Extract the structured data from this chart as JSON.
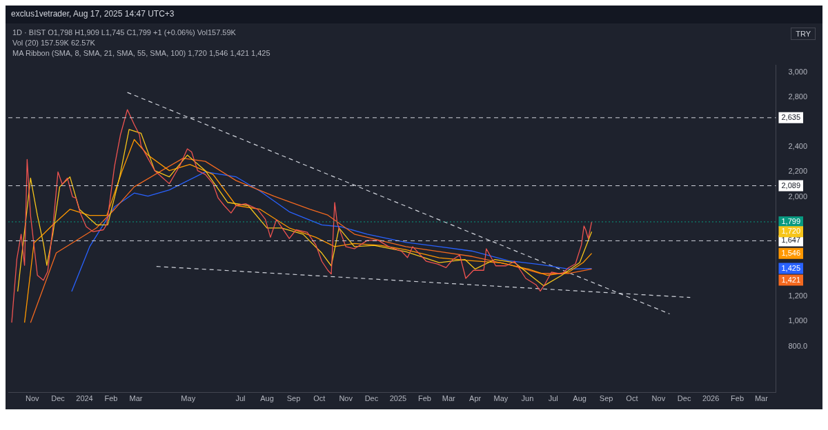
{
  "chart_data": {
    "type": "line",
    "title": "exclus1vetrader, Aug 17, 2025 14:47 UTC+3",
    "subtitle": "1D · BIST  O1,798  H1,909  L1,745  C1,799  +1 (+0.06%)  Vol157.59K",
    "annotations": [
      "Vol (20)  157.59K  62.57K",
      "MA Ribbon (SMA, 8, SMA, 21, SMA, 55, SMA, 100)  1,720  1,546  1,421  1,425",
      "TRY",
      "1,720",
      "1,546",
      "1,421",
      "1,425"
    ],
    "xlim": [
      "2023-10-04",
      "2026-03-18"
    ],
    "xticks": [
      {
        "value": "2023-11-01",
        "label": "Nov"
      },
      {
        "value": "2023-12-01",
        "label": "Dec"
      },
      {
        "value": "2024-01-01",
        "label": "2024"
      },
      {
        "value": "2024-02-01",
        "label": "Feb"
      },
      {
        "value": "2024-03-01",
        "label": "Mar"
      },
      {
        "value": "2024-05-01",
        "label": "May"
      },
      {
        "value": "2024-07-01",
        "label": "Jul"
      },
      {
        "value": "2024-08-01",
        "label": "Aug"
      },
      {
        "value": "2024-09-01",
        "label": "Sep"
      },
      {
        "value": "2024-10-01",
        "label": "Oct"
      },
      {
        "value": "2024-11-01",
        "label": "Nov"
      },
      {
        "value": "2024-12-01",
        "label": "Dec"
      },
      {
        "value": "2025-01-01",
        "label": "2025"
      },
      {
        "value": "2025-02-01",
        "label": "Feb"
      },
      {
        "value": "2025-03-01",
        "label": "Mar"
      },
      {
        "value": "2025-04-01",
        "label": "Apr"
      },
      {
        "value": "2025-05-01",
        "label": "May"
      },
      {
        "value": "2025-06-01",
        "label": "Jun"
      },
      {
        "value": "2025-07-01",
        "label": "Jul"
      },
      {
        "value": "2025-08-01",
        "label": "Aug"
      },
      {
        "value": "2025-09-01",
        "label": "Sep"
      },
      {
        "value": "2025-10-01",
        "label": "Oct"
      },
      {
        "value": "2025-11-01",
        "label": "Nov"
      },
      {
        "value": "2025-12-01",
        "label": "Dec"
      },
      {
        "value": "2026-01-01",
        "label": "2026"
      },
      {
        "value": "2026-02-01",
        "label": "Feb"
      },
      {
        "value": "2026-03-01",
        "label": "Mar"
      }
    ],
    "ylim": [
      430,
      3060
    ],
    "yticks": [
      {
        "value": 800,
        "label": "800.0"
      },
      {
        "value": 1000,
        "label": "1,000"
      },
      {
        "value": 1200,
        "label": "1,200"
      },
      {
        "value": 2000,
        "label": "2,000"
      },
      {
        "value": 2200,
        "label": "2,200"
      },
      {
        "value": 2400,
        "label": "2,400"
      },
      {
        "value": 2800,
        "label": "2,800"
      },
      {
        "value": 3000,
        "label": "3,000"
      }
    ],
    "grid": false,
    "legend": false,
    "marker": "none",
    "line_style": "solid",
    "ref_lines": [
      {
        "axis": "y",
        "value": 2635,
        "label": "2,635",
        "color": "#d1d4dc",
        "line_style": "dashed"
      },
      {
        "axis": "y",
        "value": 2089,
        "label": "2,089",
        "color": "#d1d4dc",
        "line_style": "dashed"
      },
      {
        "axis": "y",
        "value": 1647,
        "label": "1,647",
        "color": "#d1d4dc",
        "line_style": "dashed"
      },
      {
        "axis": "y",
        "value": 1799,
        "label": "1,799",
        "color": "#089981",
        "line_style": "dotted"
      }
    ],
    "series": [
      {
        "color": "#ef5350",
        "x": [
          "2023-10-08",
          "2023-10-14",
          "2023-10-19",
          "2023-10-23",
          "2023-10-26",
          "2023-10-30",
          "2023-11-07",
          "2023-11-14",
          "2023-11-19",
          "2023-11-25",
          "2023-12-01",
          "2023-12-06",
          "2023-12-12",
          "2023-12-18",
          "2023-12-22",
          "2023-12-27",
          "2024-01-03",
          "2024-01-11",
          "2024-01-23",
          "2024-01-27",
          "2024-02-05",
          "2024-02-12",
          "2024-02-20",
          "2024-02-28",
          "2024-03-05",
          "2024-03-07",
          "2024-03-15",
          "2024-03-23",
          "2024-03-31",
          "2024-04-09",
          "2024-04-22",
          "2024-04-30",
          "2024-05-05",
          "2024-05-12",
          "2024-05-21",
          "2024-05-30",
          "2024-06-05",
          "2024-06-12",
          "2024-06-20",
          "2024-06-26",
          "2024-07-07",
          "2024-07-21",
          "2024-07-30",
          "2024-08-05",
          "2024-08-12",
          "2024-08-27",
          "2024-09-04",
          "2024-09-17",
          "2024-09-27",
          "2024-10-04",
          "2024-10-11",
          "2024-10-15",
          "2024-10-19",
          "2024-10-22",
          "2024-11-01",
          "2024-11-11",
          "2024-11-26",
          "2024-12-09",
          "2024-12-21",
          "2025-01-05",
          "2025-01-12",
          "2025-01-18",
          "2025-02-03",
          "2025-02-16",
          "2025-02-26",
          "2025-03-06",
          "2025-03-14",
          "2025-03-21",
          "2025-03-30",
          "2025-04-11",
          "2025-04-14",
          "2025-04-25",
          "2025-05-07",
          "2025-05-17",
          "2025-05-30",
          "2025-06-11",
          "2025-06-16",
          "2025-06-21",
          "2025-06-29",
          "2025-07-11",
          "2025-07-19",
          "2025-07-27",
          "2025-08-03",
          "2025-08-06",
          "2025-08-08",
          "2025-08-11",
          "2025-08-15"
        ],
        "values": [
          990,
          1500,
          1700,
          1450,
          2300,
          1850,
          1370,
          1330,
          1400,
          1750,
          2200,
          2100,
          2150,
          2000,
          1990,
          1870,
          1760,
          1720,
          1735,
          1780,
          2245,
          2500,
          2700,
          2580,
          2500,
          2410,
          2310,
          2210,
          2160,
          2105,
          2260,
          2385,
          2360,
          2210,
          2180,
          2105,
          1990,
          1930,
          1870,
          1930,
          1945,
          1900,
          1820,
          1675,
          1817,
          1665,
          1735,
          1715,
          1614,
          1482,
          1410,
          1380,
          1954,
          1787,
          1600,
          1583,
          1650,
          1650,
          1600,
          1563,
          1512,
          1600,
          1482,
          1461,
          1431,
          1497,
          1533,
          1345,
          1410,
          1410,
          1583,
          1446,
          1446,
          1482,
          1345,
          1294,
          1243,
          1294,
          1395,
          1380,
          1431,
          1461,
          1614,
          1766,
          1735,
          1665,
          1799
        ]
      },
      {
        "color": "#f7c51a",
        "x": [
          "2023-10-15",
          "2023-10-30",
          "2023-11-07",
          "2023-11-14",
          "2023-11-18",
          "2023-11-25",
          "2023-12-03",
          "2023-12-15",
          "2023-12-26",
          "2024-01-15",
          "2024-01-28",
          "2024-02-11",
          "2024-02-22",
          "2024-03-07",
          "2024-03-23",
          "2024-04-09",
          "2024-04-30",
          "2024-05-21",
          "2024-06-16",
          "2024-07-10",
          "2024-08-01",
          "2024-08-18",
          "2024-09-12",
          "2024-10-04",
          "2024-10-15",
          "2024-10-24",
          "2024-11-11",
          "2024-12-04",
          "2025-01-10",
          "2025-02-18",
          "2025-03-20",
          "2025-04-01",
          "2025-04-24",
          "2025-05-17",
          "2025-06-09",
          "2025-06-20",
          "2025-07-11",
          "2025-08-01",
          "2025-08-15"
        ],
        "values": [
          1240,
          2150,
          1850,
          1625,
          1450,
          1700,
          2080,
          2160,
          1900,
          1775,
          1775,
          2160,
          2540,
          2510,
          2210,
          2160,
          2335,
          2210,
          1955,
          1930,
          1750,
          1750,
          1700,
          1548,
          1446,
          1750,
          1600,
          1610,
          1560,
          1472,
          1497,
          1420,
          1497,
          1472,
          1345,
          1285,
          1370,
          1472,
          1720
        ]
      },
      {
        "color": "#ff9800",
        "x": [
          "2023-10-23",
          "2023-11-03",
          "2023-11-14",
          "2023-11-25",
          "2023-12-15",
          "2024-01-07",
          "2024-01-27",
          "2024-02-14",
          "2024-02-28",
          "2024-03-15",
          "2024-04-09",
          "2024-05-03",
          "2024-05-30",
          "2024-06-26",
          "2024-07-24",
          "2024-08-27",
          "2024-09-27",
          "2024-10-19",
          "2024-11-11",
          "2024-12-12",
          "2025-01-10",
          "2025-02-18",
          "2025-03-28",
          "2025-05-01",
          "2025-06-02",
          "2025-06-24",
          "2025-07-19",
          "2025-08-05",
          "2025-08-15"
        ],
        "values": [
          990,
          1630,
          1700,
          1775,
          1900,
          1850,
          1850,
          2210,
          2460,
          2335,
          2210,
          2260,
          2180,
          1930,
          1900,
          1750,
          1675,
          1600,
          1625,
          1610,
          1575,
          1510,
          1487,
          1470,
          1420,
          1370,
          1395,
          1472,
          1546
        ]
      },
      {
        "color": "#f4691f",
        "x": [
          "2023-10-30",
          "2023-11-29",
          "2024-01-15",
          "2024-02-05",
          "2024-02-28",
          "2024-03-31",
          "2024-04-25",
          "2024-05-21",
          "2024-06-26",
          "2024-08-09",
          "2024-09-20",
          "2024-10-11",
          "2024-11-11",
          "2025-01-10",
          "2025-02-18",
          "2025-03-28",
          "2025-05-10",
          "2025-06-16",
          "2025-07-19",
          "2025-08-15"
        ],
        "values": [
          990,
          1550,
          1750,
          1900,
          2080,
          2210,
          2310,
          2285,
          2130,
          2005,
          1900,
          1853,
          1700,
          1600,
          1560,
          1522,
          1456,
          1385,
          1385,
          1421
        ]
      },
      {
        "color": "#2962ff",
        "x": [
          "2023-12-17",
          "2024-01-07",
          "2024-02-05",
          "2024-02-28",
          "2024-03-15",
          "2024-04-09",
          "2024-05-21",
          "2024-06-26",
          "2024-07-24",
          "2024-08-27",
          "2024-10-04",
          "2024-10-26",
          "2024-11-26",
          "2025-01-10",
          "2025-02-18",
          "2025-03-28",
          "2025-05-10",
          "2025-06-16",
          "2025-07-19",
          "2025-08-15"
        ],
        "values": [
          1240,
          1600,
          1920,
          2030,
          2005,
          2055,
          2200,
          2160,
          2045,
          1880,
          1775,
          1760,
          1700,
          1635,
          1600,
          1565,
          1487,
          1456,
          1420,
          1425
        ]
      },
      {
        "color": "#d1d4dc",
        "line_style": "dashed",
        "x": [
          "2024-02-20",
          "2025-11-14"
        ],
        "values": [
          2838,
          1060
        ]
      },
      {
        "color": "#d1d4dc",
        "line_style": "dashed",
        "x": [
          "2024-03-25",
          "2025-12-08"
        ],
        "values": [
          1441,
          1192
        ]
      }
    ]
  }
}
